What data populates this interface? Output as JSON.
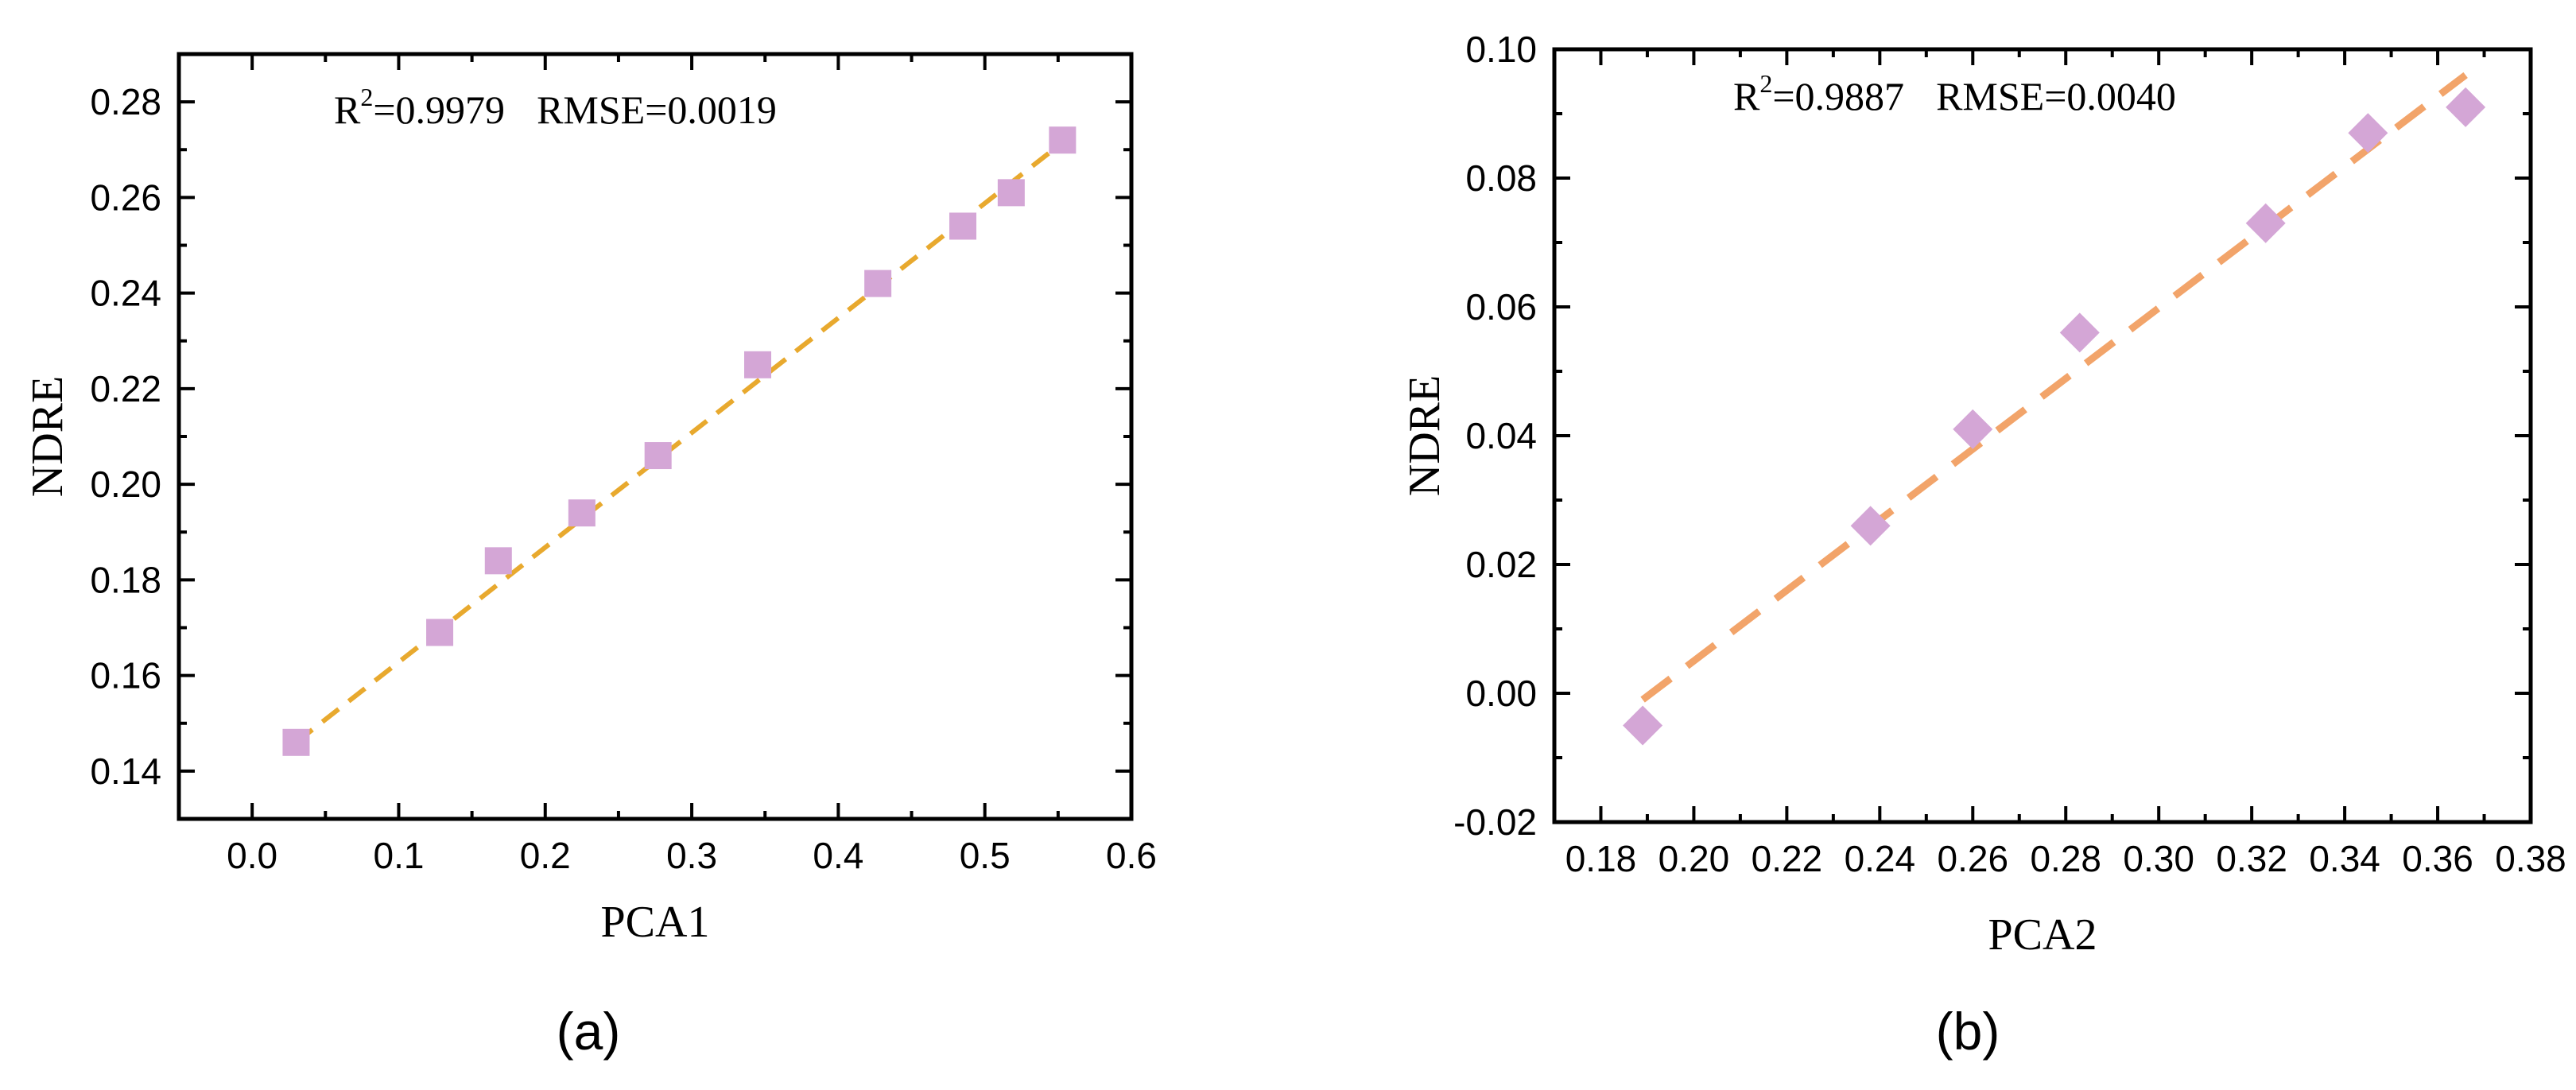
{
  "panels": [
    {
      "panel_label": "(a)",
      "annotation": {
        "r2_prefix": "R",
        "r2_sup": "2",
        "r2_value": "=0.9979",
        "rmse": "RMSE=0.0019"
      },
      "colors": {
        "marker": "#D4A6D6",
        "fit_line": "#E8A92E"
      },
      "marker_shape": "square",
      "chart_data": {
        "type": "scatter",
        "title": "",
        "xlabel": "PCA1",
        "ylabel": "NDRE",
        "xlim": [
          -0.05,
          0.6
        ],
        "ylim": [
          0.13,
          0.29
        ],
        "xticks": [
          0.0,
          0.1,
          0.2,
          0.3,
          0.4,
          0.5,
          0.6
        ],
        "xtick_labels": [
          "0.0",
          "0.1",
          "0.2",
          "0.3",
          "0.4",
          "0.5",
          "0.6"
        ],
        "yticks": [
          0.14,
          0.16,
          0.18,
          0.2,
          0.22,
          0.24,
          0.26,
          0.28
        ],
        "ytick_labels": [
          "0.14",
          "0.16",
          "0.18",
          "0.20",
          "0.22",
          "0.24",
          "0.26",
          "0.28"
        ],
        "grid": false,
        "x": [
          0.03,
          0.128,
          0.168,
          0.225,
          0.277,
          0.345,
          0.427,
          0.485,
          0.518,
          0.553
        ],
        "y": [
          0.146,
          0.169,
          0.184,
          0.194,
          0.206,
          0.225,
          0.242,
          0.254,
          0.261,
          0.272
        ],
        "fit_line": {
          "x": [
            0.03,
            0.553
          ],
          "y": [
            0.146,
            0.2715
          ]
        }
      }
    },
    {
      "panel_label": "(b)",
      "annotation": {
        "r2_prefix": "R",
        "r2_sup": "2",
        "r2_value": "=0.9887",
        "rmse": "RMSE=0.0040"
      },
      "colors": {
        "marker": "#D4A6D6",
        "fit_line": "#F2A46A"
      },
      "marker_shape": "diamond",
      "chart_data": {
        "type": "scatter",
        "title": "",
        "xlabel": "PCA2",
        "ylabel": "NDRE",
        "xlim": [
          0.17,
          0.38
        ],
        "ylim": [
          -0.02,
          0.1
        ],
        "xticks": [
          0.18,
          0.2,
          0.22,
          0.24,
          0.26,
          0.28,
          0.3,
          0.32,
          0.34,
          0.36,
          0.38
        ],
        "xtick_labels": [
          "0.18",
          "0.20",
          "0.22",
          "0.24",
          "0.26",
          "0.28",
          "0.30",
          "0.32",
          "0.34",
          "0.36",
          "0.38"
        ],
        "yticks": [
          -0.02,
          0.0,
          0.02,
          0.04,
          0.06,
          0.08,
          0.1
        ],
        "ytick_labels": [
          "-0.02",
          "0.00",
          "0.02",
          "0.04",
          "0.06",
          "0.08",
          "0.10"
        ],
        "grid": false,
        "x": [
          0.189,
          0.238,
          0.26,
          0.283,
          0.323,
          0.345,
          0.366
        ],
        "y": [
          -0.005,
          0.026,
          0.041,
          0.056,
          0.073,
          0.087,
          0.091
        ],
        "fit_line": {
          "x": [
            0.189,
            0.366
          ],
          "y": [
            -0.001,
            0.096
          ]
        }
      }
    }
  ]
}
